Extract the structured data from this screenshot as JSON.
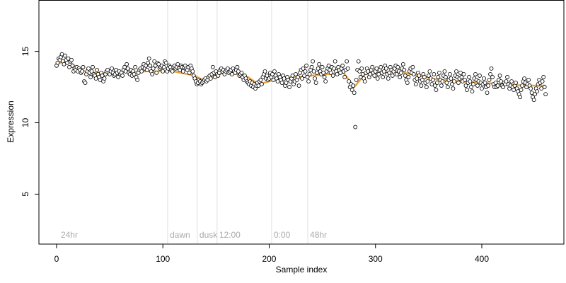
{
  "chart_data": {
    "type": "scatter",
    "xlabel": "Sample index",
    "ylabel": "Expression",
    "xlim": [
      -16.6,
      477.2
    ],
    "ylim": [
      1.5,
      18.6
    ],
    "xticks": [
      0,
      100,
      200,
      300,
      400
    ],
    "yticks": [
      5,
      10,
      15
    ],
    "annotations": [
      {
        "text": "24hr",
        "x": 2,
        "y": 2.1
      },
      {
        "text": "dawn",
        "x": 104.5,
        "y": 2.1
      },
      {
        "text": "dusk",
        "x": 132.4,
        "y": 2.1
      },
      {
        "text": "12:00",
        "x": 151,
        "y": 2.1
      },
      {
        "text": "0:00",
        "x": 202.3,
        "y": 2.1
      },
      {
        "text": "48hr",
        "x": 236.3,
        "y": 2.1
      }
    ],
    "series": [
      {
        "type": "scatter",
        "color": "#ffffff",
        "x": [
          0,
          1,
          2,
          3,
          4,
          5,
          6,
          7,
          8,
          9,
          10,
          11,
          12,
          13,
          14,
          15,
          16,
          17,
          18,
          19,
          20,
          21,
          22,
          23,
          24,
          25,
          26,
          27,
          28,
          29,
          30,
          31,
          32,
          33,
          34,
          35,
          36,
          37,
          38,
          39,
          40,
          41,
          42,
          43,
          44,
          45,
          46,
          47,
          48,
          49,
          50,
          51,
          52,
          53,
          54,
          55,
          56,
          57,
          58,
          59,
          60,
          61,
          62,
          63,
          64,
          65,
          66,
          67,
          68,
          69,
          70,
          71,
          72,
          73,
          74,
          75,
          76,
          77,
          78,
          79,
          80,
          81,
          82,
          83,
          84,
          85,
          86,
          87,
          88,
          89,
          90,
          91,
          92,
          93,
          94,
          95,
          96,
          97,
          98,
          99,
          100,
          101,
          102,
          103,
          104,
          105,
          106,
          107,
          108,
          109,
          110,
          111,
          112,
          113,
          114,
          115,
          116,
          117,
          118,
          119,
          120,
          121,
          122,
          123,
          124,
          125,
          126,
          127,
          128,
          129,
          130,
          131,
          132,
          133,
          134,
          135,
          136,
          137,
          138,
          139,
          140,
          141,
          142,
          143,
          144,
          145,
          146,
          147,
          148,
          149,
          150,
          151,
          152,
          153,
          154,
          155,
          156,
          157,
          158,
          159,
          160,
          161,
          162,
          163,
          164,
          165,
          166,
          167,
          168,
          169,
          170,
          171,
          172,
          173,
          174,
          175,
          176,
          177,
          178,
          179,
          180,
          181,
          182,
          183,
          184,
          185,
          186,
          187,
          188,
          189,
          190,
          191,
          192,
          193,
          194,
          195,
          196,
          197,
          198,
          199,
          200,
          201,
          202,
          203,
          204,
          205,
          206,
          207,
          208,
          209,
          210,
          211,
          212,
          213,
          214,
          215,
          216,
          217,
          218,
          219,
          220,
          221,
          222,
          223,
          224,
          225,
          226,
          227,
          228,
          229,
          230,
          231,
          232,
          233,
          234,
          235,
          236,
          237,
          238,
          239,
          240,
          241,
          242,
          243,
          244,
          245,
          246,
          247,
          248,
          249,
          250,
          251,
          252,
          253,
          254,
          255,
          256,
          257,
          258,
          259,
          260,
          261,
          262,
          263,
          264,
          265,
          266,
          267,
          268,
          269,
          270,
          271,
          272,
          273,
          274,
          275,
          276,
          277,
          278,
          279,
          280,
          281,
          282,
          283,
          284,
          285,
          286,
          287,
          288,
          289,
          290,
          291,
          292,
          293,
          294,
          295,
          296,
          297,
          298,
          299,
          300,
          301,
          302,
          303,
          304,
          305,
          306,
          307,
          308,
          309,
          310,
          311,
          312,
          313,
          314,
          315,
          316,
          317,
          318,
          319,
          320,
          321,
          322,
          323,
          324,
          325,
          326,
          327,
          328,
          329,
          330,
          331,
          332,
          333,
          334,
          335,
          336,
          337,
          338,
          339,
          340,
          341,
          342,
          343,
          344,
          345,
          346,
          347,
          348,
          349,
          350,
          351,
          352,
          353,
          354,
          355,
          356,
          357,
          358,
          359,
          360,
          361,
          362,
          363,
          364,
          365,
          366,
          367,
          368,
          369,
          370,
          371,
          372,
          373,
          374,
          375,
          376,
          377,
          378,
          379,
          380,
          381,
          382,
          383,
          384,
          385,
          386,
          387,
          388,
          389,
          390,
          391,
          392,
          393,
          394,
          395,
          396,
          397,
          398,
          399,
          400,
          401,
          402,
          403,
          404,
          405,
          406,
          407,
          408,
          409,
          410,
          411,
          412,
          413,
          414,
          415,
          416,
          417,
          418,
          419,
          420,
          421,
          422,
          423,
          424,
          425,
          426,
          427,
          428,
          429,
          430,
          431,
          432,
          433,
          434,
          435,
          436,
          437,
          438,
          439,
          440,
          441,
          442,
          443,
          444,
          445,
          446,
          447,
          448,
          449,
          450,
          451,
          452,
          453,
          454,
          455,
          456,
          457,
          458,
          459,
          460
        ],
        "values": [
          14.0,
          14.2,
          14.5,
          14.4,
          14.6,
          14.8,
          14.3,
          14.1,
          14.7,
          14.4,
          14.2,
          14.5,
          13.9,
          14.3,
          14.4,
          14.0,
          13.6,
          13.8,
          13.7,
          13.9,
          13.6,
          13.8,
          13.7,
          13.5,
          13.6,
          13.9,
          12.9,
          12.8,
          13.4,
          13.6,
          13.8,
          13.5,
          13.2,
          13.6,
          13.9,
          13.4,
          13.3,
          13.1,
          13.7,
          13.4,
          13.2,
          13.0,
          13.5,
          13.3,
          12.9,
          13.1,
          13.4,
          13.6,
          13.7,
          13.5,
          13.4,
          13.6,
          13.8,
          13.5,
          13.3,
          13.4,
          13.7,
          13.5,
          13.2,
          13.6,
          13.4,
          13.5,
          13.3,
          13.7,
          13.9,
          13.6,
          14.1,
          13.8,
          13.5,
          13.4,
          13.7,
          13.3,
          13.6,
          13.4,
          13.9,
          13.2,
          13.0,
          13.5,
          13.7,
          13.8,
          13.6,
          13.9,
          14.1,
          13.8,
          14.0,
          13.7,
          14.2,
          14.5,
          14.0,
          13.6,
          13.4,
          13.8,
          14.3,
          14.0,
          13.5,
          14.2,
          14.1,
          13.8,
          13.9,
          14.0,
          13.6,
          13.9,
          14.3,
          14.2,
          13.6,
          13.8,
          14.0,
          13.9,
          13.7,
          13.6,
          13.9,
          14.0,
          13.8,
          13.9,
          14.1,
          13.8,
          13.7,
          14.0,
          13.9,
          13.6,
          13.9,
          14.0,
          13.8,
          13.7,
          13.9,
          13.5,
          14.0,
          13.8,
          13.6,
          13.3,
          13.1,
          12.9,
          12.7,
          12.8,
          13.0,
          12.9,
          12.7,
          12.8,
          12.9,
          13.0,
          13.1,
          12.9,
          13.0,
          13.2,
          13.3,
          13.1,
          13.4,
          13.9,
          13.5,
          13.2,
          13.6,
          13.4,
          13.3,
          13.5,
          13.7,
          13.8,
          13.6,
          13.7,
          13.4,
          13.6,
          13.7,
          13.8,
          13.5,
          13.6,
          13.7,
          13.4,
          13.8,
          13.6,
          13.5,
          13.7,
          13.9,
          13.6,
          13.3,
          13.4,
          13.5,
          13.2,
          13.0,
          13.3,
          13.1,
          12.9,
          12.8,
          12.7,
          12.9,
          12.6,
          12.8,
          12.5,
          12.7,
          12.4,
          12.6,
          12.8,
          12.6,
          12.9,
          13.0,
          12.7,
          13.2,
          13.4,
          13.6,
          13.1,
          13.3,
          13.0,
          13.1,
          13.5,
          13.2,
          13.4,
          13.0,
          13.6,
          13.3,
          13.1,
          12.9,
          13.4,
          13.2,
          13.0,
          12.8,
          13.3,
          13.1,
          12.6,
          12.8,
          13.2,
          13.0,
          12.5,
          12.9,
          13.1,
          13.3,
          12.7,
          12.9,
          13.4,
          13.0,
          13.2,
          12.6,
          13.5,
          13.7,
          13.1,
          13.8,
          13.3,
          13.6,
          14.0,
          13.2,
          12.9,
          13.4,
          13.7,
          13.9,
          14.3,
          13.6,
          13.1,
          12.8,
          13.5,
          13.8,
          14.1,
          13.6,
          13.4,
          13.9,
          13.5,
          13.2,
          12.9,
          13.6,
          13.8,
          14.0,
          13.7,
          13.5,
          13.9,
          13.3,
          13.8,
          14.3,
          13.6,
          13.4,
          13.9,
          13.7,
          13.5,
          13.8,
          14.0,
          13.6,
          13.2,
          13.7,
          14.3,
          13.8,
          12.9,
          12.5,
          12.7,
          12.3,
          12.6,
          12.1,
          9.7,
          13.0,
          13.7,
          14.3,
          13.6,
          13.2,
          13.8,
          13.4,
          13.1,
          12.9,
          13.5,
          13.8,
          13.6,
          13.2,
          13.4,
          13.7,
          13.9,
          13.5,
          13.3,
          13.6,
          13.8,
          13.1,
          13.4,
          13.7,
          13.9,
          13.5,
          13.2,
          13.6,
          14.0,
          13.8,
          13.4,
          13.1,
          13.5,
          13.9,
          13.7,
          13.3,
          13.6,
          13.8,
          14.0,
          13.4,
          13.9,
          13.6,
          13.2,
          13.5,
          13.8,
          14.1,
          13.7,
          13.3,
          13.0,
          12.8,
          13.2,
          13.6,
          13.8,
          13.5,
          13.9,
          13.4,
          13.0,
          12.7,
          13.1,
          13.5,
          13.3,
          12.9,
          12.6,
          13.0,
          13.4,
          13.2,
          12.8,
          12.5,
          12.9,
          13.3,
          13.6,
          13.1,
          12.7,
          13.0,
          13.4,
          12.6,
          12.3,
          12.8,
          13.2,
          13.5,
          13.0,
          12.6,
          12.9,
          13.3,
          13.6,
          13.2,
          12.8,
          12.5,
          13.0,
          13.4,
          13.1,
          12.7,
          12.4,
          12.9,
          13.3,
          13.6,
          13.2,
          12.8,
          13.1,
          13.5,
          13.2,
          12.9,
          13.4,
          13.0,
          12.6,
          12.3,
          12.8,
          13.2,
          12.9,
          12.5,
          12.2,
          12.7,
          13.1,
          13.4,
          13.0,
          12.6,
          12.9,
          13.3,
          12.8,
          12.4,
          12.7,
          13.1,
          12.8,
          12.5,
          12.1,
          12.6,
          13.0,
          13.4,
          13.8,
          13.2,
          12.7,
          12.5,
          12.8,
          12.5,
          12.6,
          13.0,
          13.3,
          12.9,
          12.6,
          12.5,
          12.8,
          12.7,
          12.9,
          13.2,
          12.7,
          12.4,
          12.6,
          12.9,
          12.5,
          12.3,
          12.6,
          12.8,
          12.4,
          12.2,
          12.0,
          11.8,
          12.3,
          12.6,
          12.9,
          13.1,
          12.8,
          12.5,
          12.7,
          13.0,
          12.6,
          12.4,
          12.1,
          11.8,
          11.6,
          12.0,
          12.4,
          12.2,
          12.7,
          13.0,
          12.8,
          12.4,
          12.9,
          13.2,
          12.5,
          12.0
        ]
      },
      {
        "type": "line",
        "color": "#e8a33c",
        "x": [
          0,
          10,
          20,
          30,
          50,
          80,
          100,
          110,
          130,
          140,
          150,
          160,
          180,
          190,
          210,
          240,
          270,
          280,
          290,
          320,
          360,
          400,
          440,
          460
        ],
        "values": [
          14.1,
          14.4,
          13.8,
          13.5,
          13.5,
          13.6,
          13.6,
          13.6,
          13.3,
          12.9,
          13.3,
          13.6,
          13.2,
          12.7,
          13.1,
          13.3,
          13.5,
          12.5,
          13.4,
          13.6,
          13.0,
          12.8,
          12.6,
          12.6
        ]
      }
    ]
  }
}
